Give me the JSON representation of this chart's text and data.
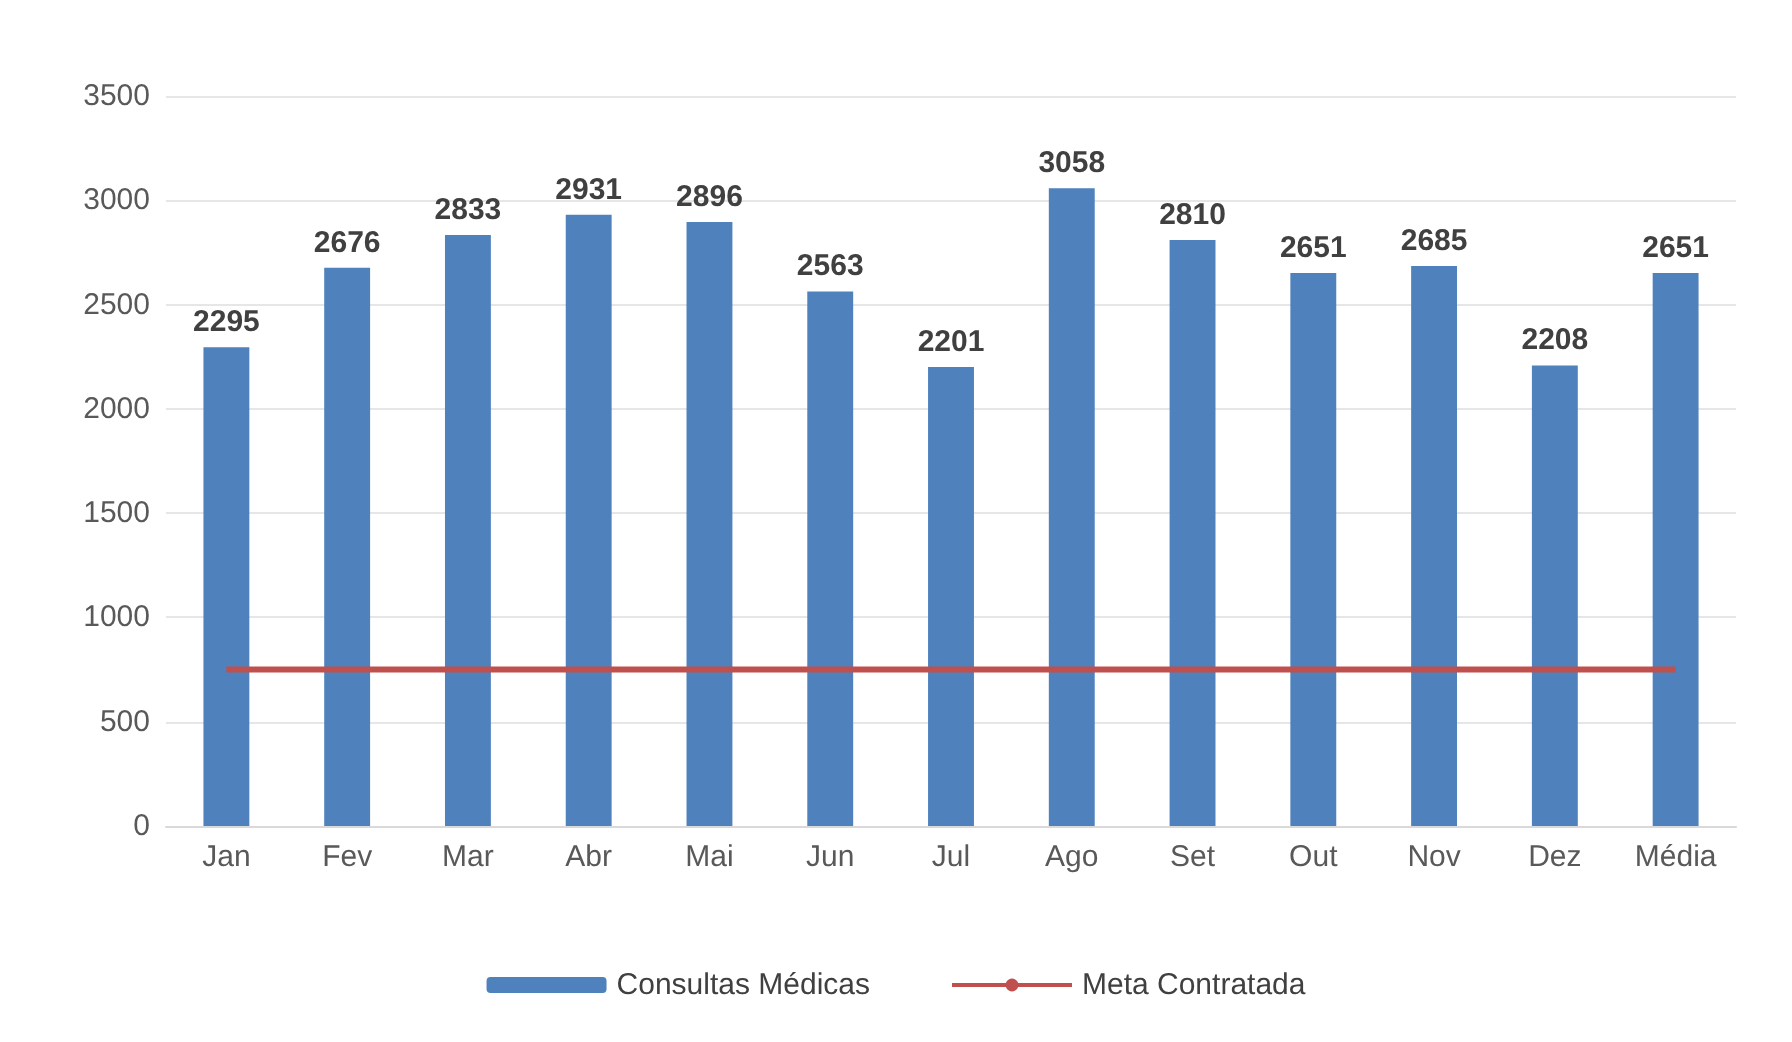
{
  "chart_data": {
    "type": "bar",
    "categories": [
      "Jan",
      "Fev",
      "Mar",
      "Abr",
      "Mai",
      "Jun",
      "Jul",
      "Ago",
      "Set",
      "Out",
      "Nov",
      "Dez",
      "Média"
    ],
    "series": [
      {
        "name": "Consultas Médicas",
        "color": "#4f81bd",
        "values": [
          2295,
          2676,
          2833,
          2931,
          2896,
          2563,
          2201,
          3058,
          2810,
          2651,
          2685,
          2208,
          2651
        ],
        "data_labels": true
      },
      {
        "name": "Meta Contratada",
        "type": "line",
        "color": "#c0504d",
        "marker": "none",
        "values": [
          750,
          750,
          750,
          750,
          750,
          750,
          750,
          750,
          750,
          750,
          750,
          750,
          750
        ]
      }
    ],
    "ylim": [
      0,
      3500
    ],
    "yticks": [
      0,
      500,
      1000,
      1500,
      2000,
      2500,
      3000,
      3500
    ],
    "grid": "y",
    "legend": "bottom"
  }
}
